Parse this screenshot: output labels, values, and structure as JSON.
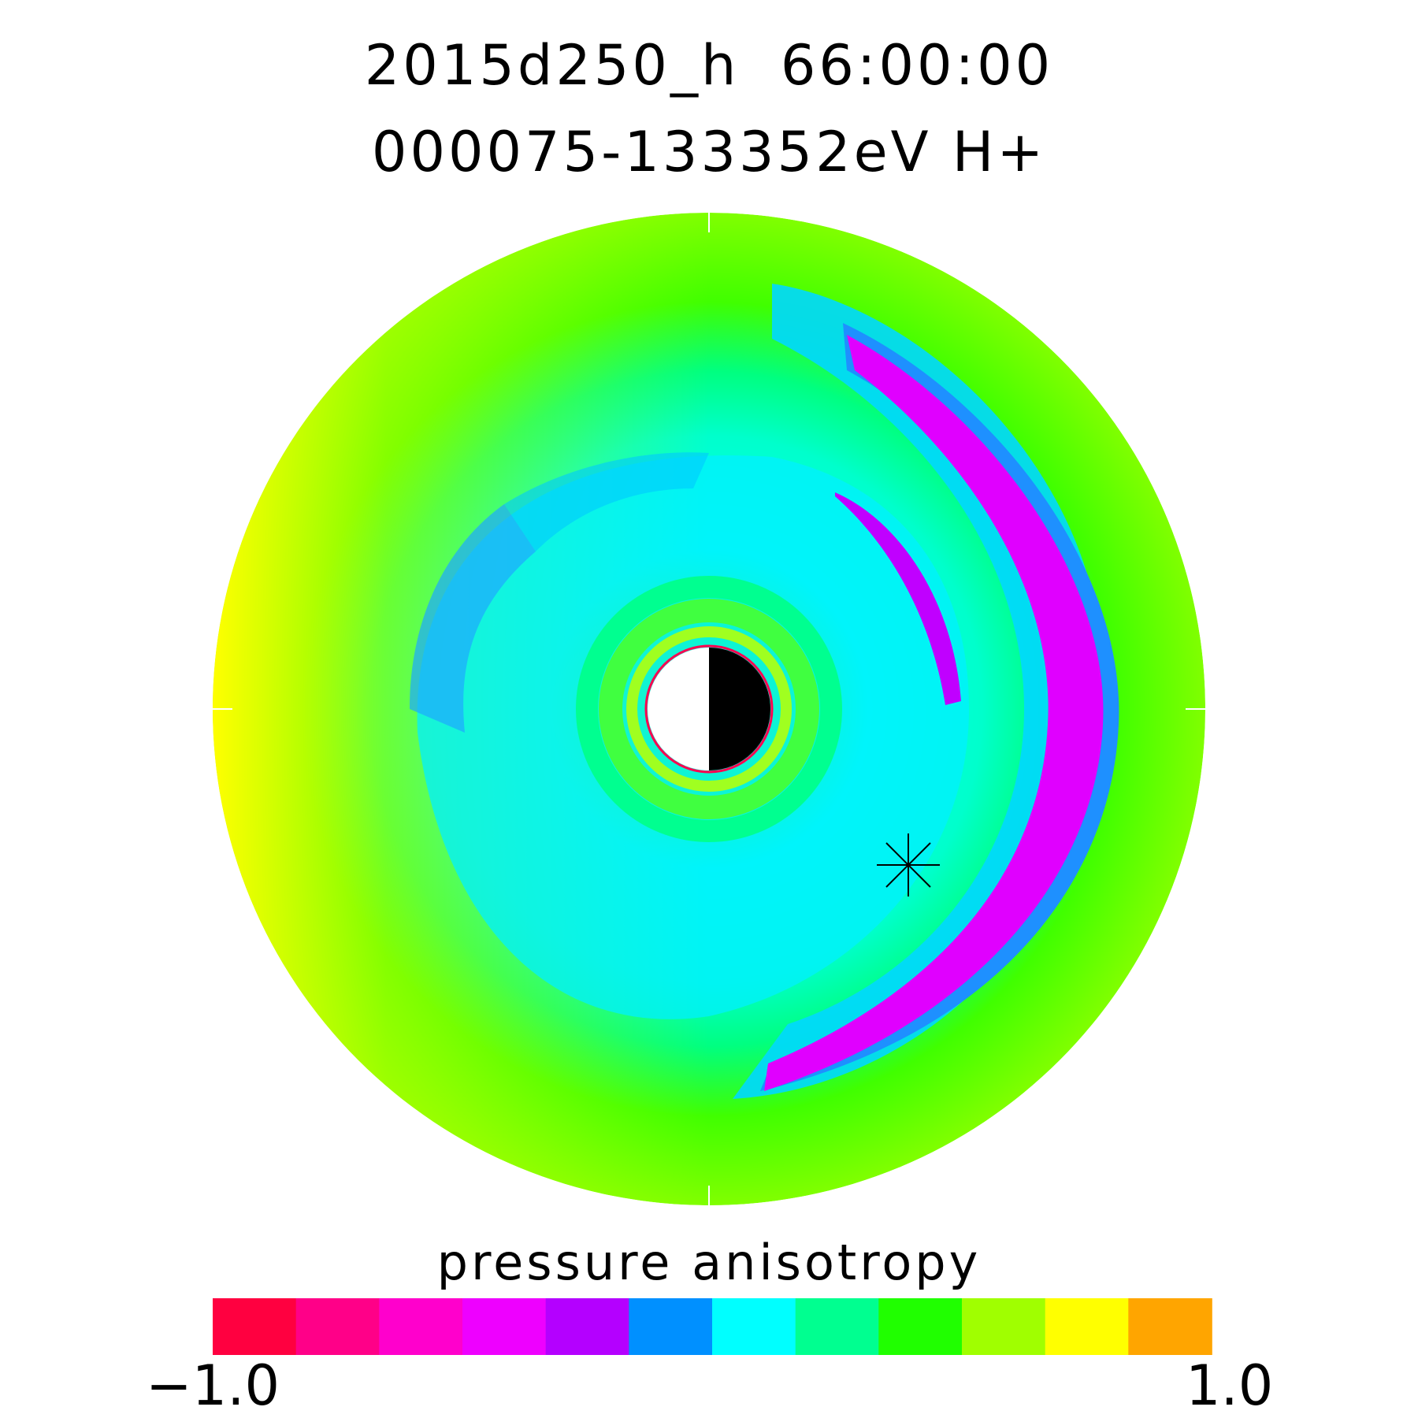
{
  "chart_data": {
    "type": "heatmap",
    "title": "2015d250_h  66:00:00",
    "subtitle": "000075-133352eV H+",
    "colorbar": {
      "label": "pressure anisotropy",
      "min": -1.0,
      "max": 1.0,
      "min_label": "−1.0",
      "max_label": "1.0",
      "colors": [
        "#ff0040",
        "#ff0088",
        "#ff00cc",
        "#ee00ff",
        "#b400ff",
        "#0090ff",
        "#00ffff",
        "#00ff90",
        "#20ff00",
        "#a0ff00",
        "#ffff00",
        "#ffa500"
      ]
    },
    "marker": "asterisk"
  }
}
